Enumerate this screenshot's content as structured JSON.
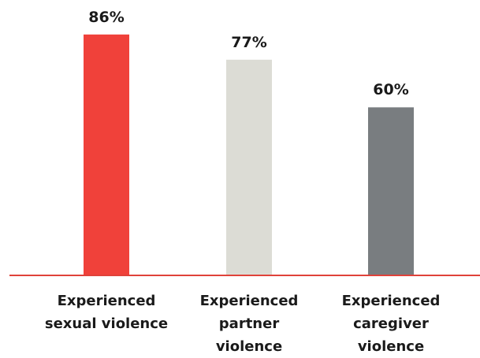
{
  "chart_data": {
    "type": "bar",
    "categories": [
      "Experienced sexual violence",
      "Experienced partner violence",
      "Experienced caregiver violence"
    ],
    "values": [
      86,
      77,
      60
    ],
    "value_labels": [
      "86%",
      "77%",
      "60%"
    ],
    "colors": [
      "#f0413a",
      "#dcdcd5",
      "#797d80"
    ],
    "baseline_color": "#e0423a"
  }
}
